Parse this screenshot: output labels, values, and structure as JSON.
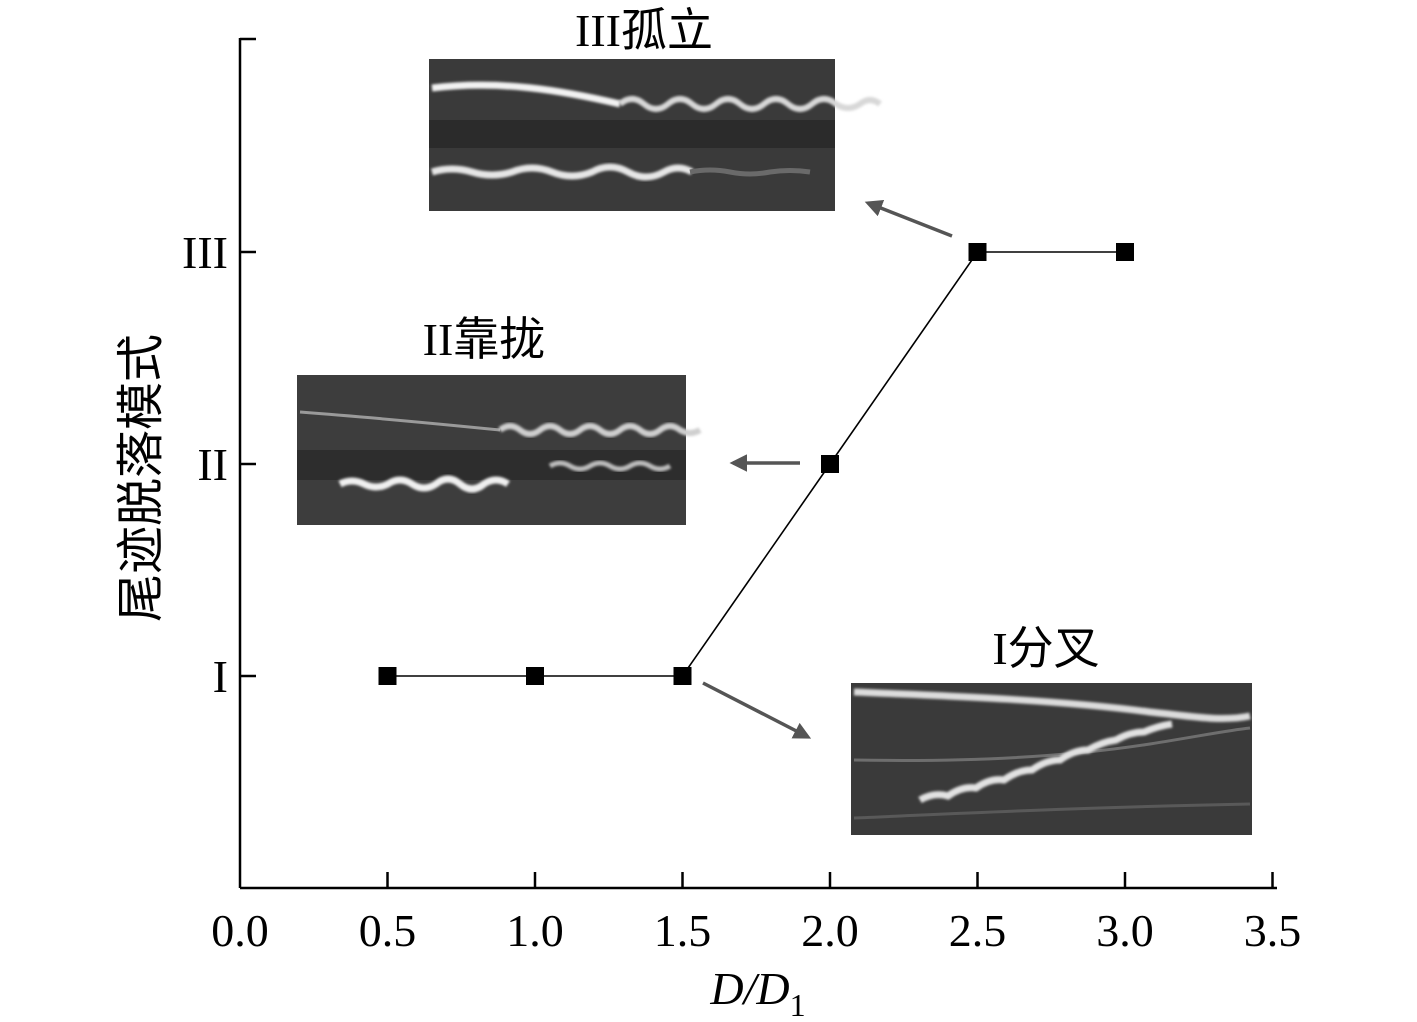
{
  "chart_data": {
    "type": "scatter",
    "xlabel": {
      "main": "D/D",
      "subscript": "1"
    },
    "ylabel": "尾迹脱落模式",
    "xlim": [
      0.0,
      3.5
    ],
    "x_ticks": [
      "0.0",
      "0.5",
      "1.0",
      "1.5",
      "2.0",
      "2.5",
      "3.0",
      "3.5"
    ],
    "y_categories": [
      "I",
      "II",
      "III"
    ],
    "series": [
      {
        "x": [
          0.5,
          1.0,
          1.5,
          2.0,
          2.5,
          3.0
        ],
        "y": [
          "I",
          "I",
          "I",
          "II",
          "III",
          "III"
        ],
        "marker": "square",
        "line": true
      }
    ],
    "insets": [
      {
        "id": "III",
        "title": "III孤立"
      },
      {
        "id": "II",
        "title": "II靠拢"
      },
      {
        "id": "I",
        "title": "I分叉"
      }
    ],
    "grid": false,
    "colors": {
      "marker": "#000000",
      "line": "#000000",
      "arrow": "#555555",
      "inset_bg": "#3a3a3a"
    }
  }
}
